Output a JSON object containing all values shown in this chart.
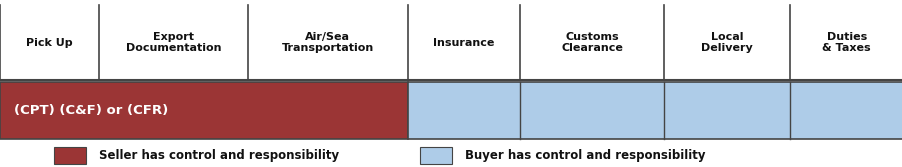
{
  "columns": [
    "Pick Up",
    "Export\nDocumentation",
    "Air/Sea\nTransportation",
    "Insurance",
    "Customs\nClearance",
    "Local\nDelivery",
    "Duties\n& Taxes"
  ],
  "col_widths": [
    0.88,
    1.32,
    1.42,
    1.0,
    1.28,
    1.12,
    1.0
  ],
  "seller_cols": 3,
  "bar_label": "(CPT) (C&F) or (CFR)",
  "seller_color": "#9B3535",
  "buyer_color": "#AECCE8",
  "seller_legend": "Seller has control and responsibility",
  "buyer_legend": "Buyer has control and responsibility",
  "header_fontsize": 8.0,
  "bar_label_fontsize": 9.5,
  "legend_fontsize": 8.5,
  "bg_color": "#FFFFFF",
  "bar_edge_color": "#444444",
  "header_text_color": "#111111",
  "divider_color": "#444444"
}
